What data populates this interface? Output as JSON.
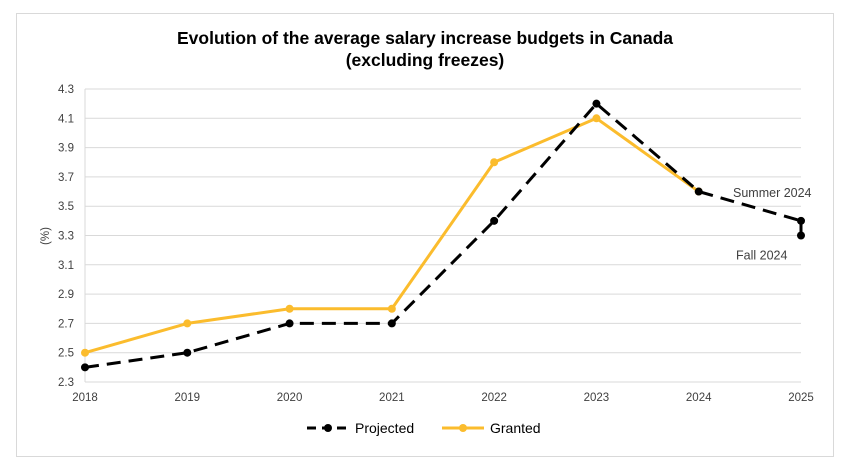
{
  "chart_data": {
    "type": "line",
    "title": "Evolution of the average salary increase budgets in Canada",
    "subtitle": "(excluding freezes)",
    "ylabel": "(%)",
    "xlabel": "",
    "x": [
      "2018",
      "2019",
      "2020",
      "2021",
      "2022",
      "2023",
      "2024",
      "2025"
    ],
    "ylim": [
      2.3,
      4.3
    ],
    "yticks": [
      "2.3",
      "2.5",
      "2.7",
      "2.9",
      "3.1",
      "3.3",
      "3.5",
      "3.7",
      "3.9",
      "4.1",
      "4.3"
    ],
    "grid": true,
    "legend_placement": "bottom",
    "series": [
      {
        "name": "Projected",
        "color": "#000000",
        "style": "dashed",
        "values": [
          2.4,
          2.5,
          2.7,
          2.7,
          3.4,
          4.2,
          3.6,
          3.4
        ]
      },
      {
        "name": "Granted",
        "color": "#FBBC2D",
        "style": "solid",
        "values": [
          2.5,
          2.7,
          2.8,
          2.8,
          3.8,
          4.1,
          3.6,
          null
        ]
      }
    ],
    "extra_points": [
      {
        "series": "Projected",
        "x": "2025",
        "y": 3.3
      }
    ],
    "annotations": [
      {
        "text": "Summer 2024",
        "x": "2025",
        "y": 3.4
      },
      {
        "text": "Fall 2024",
        "x": "2025",
        "y": 3.3
      }
    ]
  }
}
